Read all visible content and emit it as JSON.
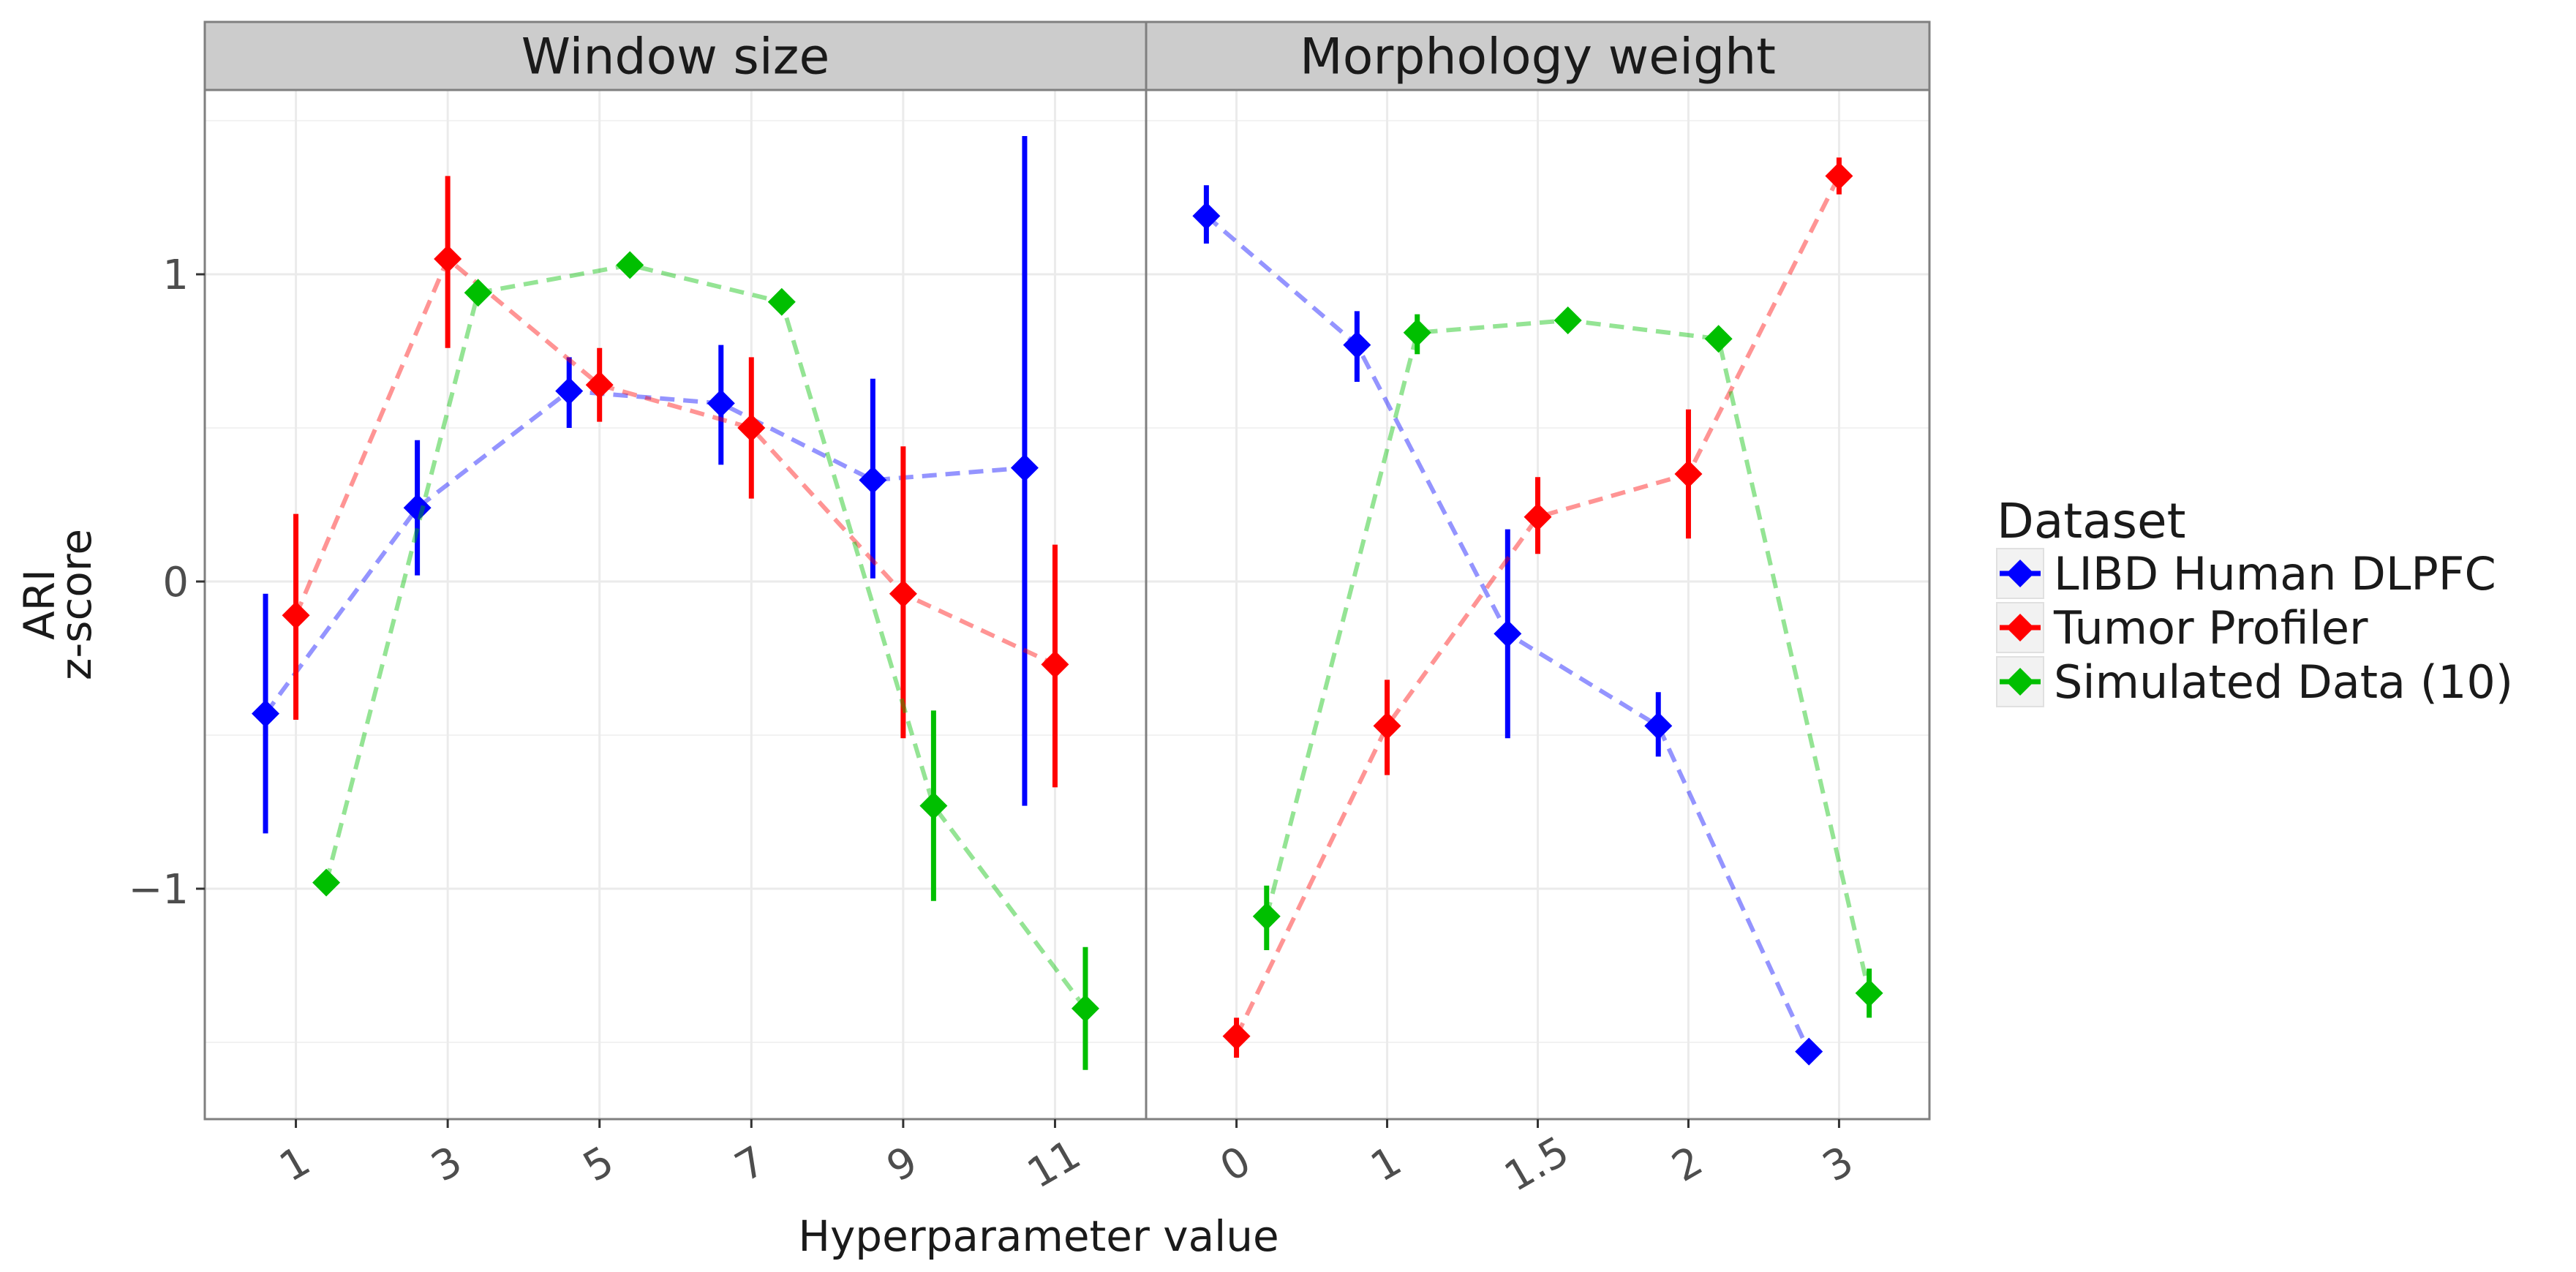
{
  "chart_data": {
    "type": "line",
    "facets": [
      {
        "title": "Window size",
        "categories": [
          "1",
          "3",
          "5",
          "7",
          "9",
          "11"
        ],
        "series": [
          {
            "name": "LIBD Human DLPFC",
            "values": [
              -0.43,
              0.24,
              0.62,
              0.58,
              0.33,
              0.37
            ],
            "lower": [
              -0.82,
              0.02,
              0.5,
              0.38,
              0.01,
              -0.73
            ],
            "upper": [
              -0.04,
              0.46,
              0.73,
              0.77,
              0.66,
              1.45
            ]
          },
          {
            "name": "Tumor Profiler",
            "values": [
              -0.11,
              1.05,
              0.64,
              0.5,
              -0.04,
              -0.27
            ],
            "lower": [
              -0.45,
              0.76,
              0.52,
              0.27,
              -0.51,
              -0.67
            ],
            "upper": [
              0.22,
              1.32,
              0.76,
              0.73,
              0.44,
              0.12
            ]
          },
          {
            "name": "Simulated Data (10)",
            "values": [
              -0.98,
              0.94,
              1.03,
              0.91,
              -0.73,
              -1.39
            ],
            "lower": [
              -1.0,
              0.92,
              1.01,
              0.88,
              -1.04,
              -1.59
            ],
            "upper": [
              -0.96,
              0.96,
              1.05,
              0.94,
              -0.42,
              -1.19
            ]
          }
        ]
      },
      {
        "title": "Morphology weight",
        "categories": [
          "0",
          "1",
          "1.5",
          "2",
          "3"
        ],
        "series": [
          {
            "name": "LIBD Human DLPFC",
            "values": [
              1.19,
              0.77,
              -0.17,
              -0.47,
              -1.53
            ],
            "lower": [
              1.1,
              0.65,
              -0.51,
              -0.57,
              -1.55
            ],
            "upper": [
              1.29,
              0.88,
              0.17,
              -0.36,
              -1.51
            ]
          },
          {
            "name": "Tumor Profiler",
            "values": [
              -1.48,
              -0.47,
              0.21,
              0.35,
              1.32
            ],
            "lower": [
              -1.55,
              -0.63,
              0.09,
              0.14,
              1.26
            ],
            "upper": [
              -1.42,
              -0.32,
              0.34,
              0.56,
              1.38
            ]
          },
          {
            "name": "Simulated Data (10)",
            "values": [
              -1.09,
              0.81,
              0.85,
              0.79,
              -1.34
            ],
            "lower": [
              -1.2,
              0.74,
              0.83,
              0.77,
              -1.42
            ],
            "upper": [
              -0.99,
              0.87,
              0.87,
              0.81,
              -1.26
            ]
          }
        ]
      }
    ],
    "xlabel": "Hyperparameter value",
    "ylabel_lines": [
      "ARI",
      "z-score"
    ],
    "ylim": [
      -1.75,
      1.6
    ],
    "yticks": [
      -1,
      0,
      1
    ],
    "ytick_labels": [
      "−1",
      "0",
      "1"
    ],
    "grid": true,
    "legend": {
      "title": "Dataset",
      "position": "right",
      "entries": [
        "LIBD Human DLPFC",
        "Tumor Profiler",
        "Simulated Data (10)"
      ]
    },
    "colors": {
      "LIBD Human DLPFC": "#0000ff",
      "Tumor Profiler": "#ff0000",
      "Simulated Data (10)": "#00bf00"
    },
    "strip_fill": "#cccccc"
  }
}
